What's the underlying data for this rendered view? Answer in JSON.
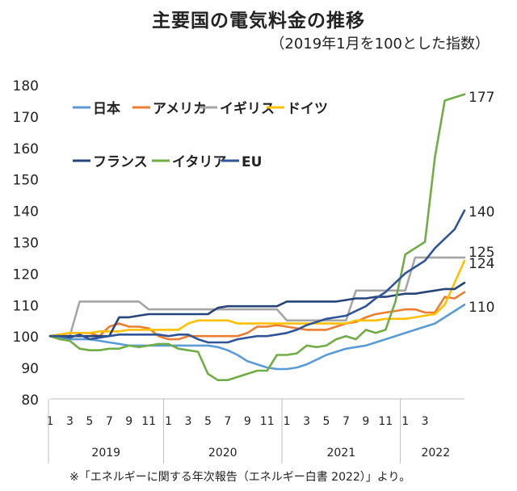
{
  "chart_data": {
    "type": "line",
    "title": "主要国の電気料金の推移",
    "subtitle": "（2019年1月を100とした指数）",
    "ylim": [
      80,
      180
    ],
    "yticks": [
      80,
      90,
      100,
      110,
      120,
      130,
      140,
      150,
      160,
      170,
      180
    ],
    "x_tick_labels": [
      "1",
      "3",
      "5",
      "7",
      "9",
      "11",
      "1",
      "3",
      "5",
      "7",
      "9",
      "11",
      "1",
      "3",
      "5",
      "7",
      "9",
      "11",
      "1",
      "3"
    ],
    "years": [
      "2019",
      "2020",
      "2021",
      "2022"
    ],
    "grid": false,
    "legend_position": "top-left",
    "end_labels": [
      "177",
      "140",
      "125",
      "124",
      "110"
    ],
    "series": [
      {
        "name": "日本",
        "color": "#5b9bd5",
        "end_label": "110",
        "values": [
          100,
          99.5,
          99,
          99,
          99,
          98.5,
          98,
          97.5,
          97,
          97,
          97,
          97,
          97,
          97,
          97,
          97,
          97,
          96.5,
          95.5,
          94,
          92,
          91,
          90,
          89.5,
          89.5,
          90,
          91,
          92.5,
          94,
          95,
          96,
          96.5,
          97,
          98,
          99,
          100,
          101,
          102,
          103,
          104,
          106,
          108,
          110
        ]
      },
      {
        "name": "アメリカ",
        "color": "#ed7d31",
        "end_label": "",
        "values": [
          100,
          100.5,
          101,
          101,
          101,
          100,
          103,
          104,
          103,
          103,
          102.5,
          100,
          99,
          99,
          100,
          100,
          100,
          100,
          100,
          100,
          101,
          103,
          103,
          103.5,
          103,
          102.5,
          102,
          102,
          102,
          103,
          104,
          104.5,
          106,
          107,
          107.5,
          108,
          108.5,
          108.5,
          107.5,
          107.5,
          112.5,
          112,
          114
        ]
      },
      {
        "name": "イギリス",
        "color": "#a5a5a5",
        "end_label": "125",
        "values": [
          100,
          100,
          100,
          111,
          111,
          111,
          111,
          111,
          111,
          111,
          108.5,
          108.5,
          108.5,
          108.5,
          108.5,
          108.5,
          108.5,
          108.5,
          108.5,
          108.5,
          108.5,
          108.5,
          108.5,
          108.5,
          105,
          105,
          105,
          105,
          105,
          105,
          105,
          114.5,
          114.5,
          114.5,
          114.5,
          114.5,
          114.5,
          125,
          125,
          125,
          125,
          125,
          125
        ]
      },
      {
        "name": "ドイツ",
        "color": "#ffc000",
        "end_label": "124",
        "values": [
          100,
          100.5,
          101,
          101,
          101,
          101.5,
          101.5,
          101.5,
          102,
          102,
          102,
          102,
          102,
          102,
          104,
          105,
          105,
          105,
          105,
          104,
          104,
          104,
          104,
          104,
          104,
          104,
          104,
          104,
          104,
          104,
          104,
          105,
          105,
          105,
          105.5,
          105.5,
          105.5,
          106,
          106.5,
          107,
          110,
          117,
          124
        ]
      },
      {
        "name": "フランス",
        "color": "#264478",
        "end_label": "",
        "values": [
          100,
          100,
          100,
          100,
          100,
          100,
          100,
          106,
          106,
          106.5,
          107,
          107,
          107,
          107,
          107,
          107,
          107,
          109,
          109.5,
          109.5,
          109.5,
          109.5,
          109.5,
          109.5,
          111,
          111,
          111,
          111,
          111,
          111,
          111.5,
          112,
          112,
          112.5,
          112.5,
          113,
          113.5,
          113.5,
          114,
          114.5,
          115,
          115,
          117
        ]
      },
      {
        "name": "イタリア",
        "color": "#70ad47",
        "end_label": "177",
        "values": [
          100,
          99,
          98.5,
          96,
          95.5,
          95.5,
          96,
          96,
          97,
          96.5,
          97,
          97.5,
          97.5,
          96,
          95.5,
          95,
          88,
          86,
          86,
          87,
          88,
          89,
          89,
          94,
          94,
          94.5,
          97,
          96.5,
          97,
          99,
          100,
          99,
          102,
          101,
          102,
          111,
          126,
          128,
          130,
          157,
          175,
          176,
          177
        ]
      },
      {
        "name": "EU",
        "color": "#2f5597",
        "end_label": "140",
        "values": [
          100,
          100,
          99.5,
          100.5,
          99,
          99.5,
          100,
          100.5,
          100.5,
          100.5,
          100.5,
          100.5,
          100,
          100.5,
          100.5,
          99,
          98,
          98,
          98,
          99,
          99.5,
          100,
          100,
          100.5,
          101,
          102,
          103.5,
          104.5,
          105.5,
          106,
          106.5,
          108,
          109.5,
          112,
          114,
          117,
          120,
          122,
          124,
          128,
          131,
          134,
          140
        ]
      }
    ]
  },
  "footnote": "※「エネルギーに関する年次報告（エネルギー白書 2022）」より。"
}
